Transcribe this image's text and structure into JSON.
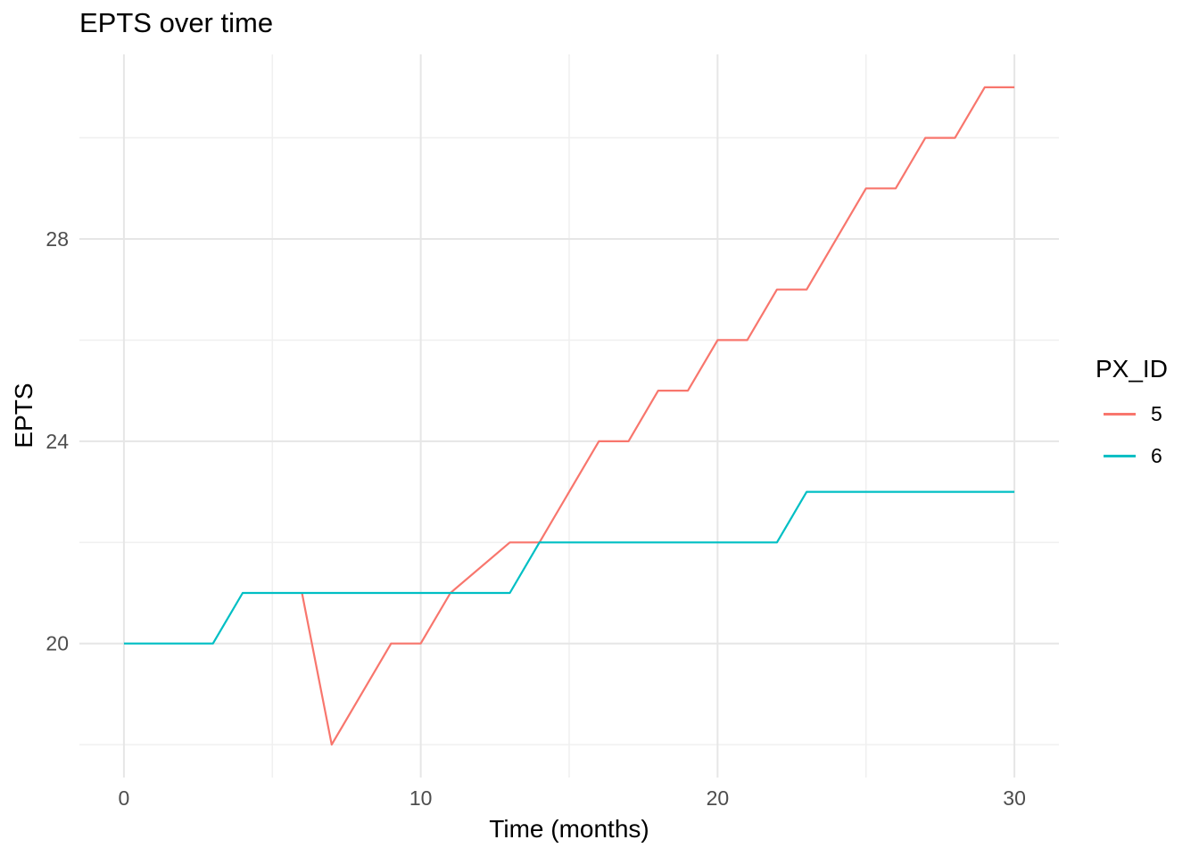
{
  "page": {
    "title": "EPTS over time",
    "x_axis_label": "Time (months)",
    "y_axis_label": "EPTS",
    "legend_title": "PX_ID"
  },
  "colors": {
    "background": "#FFFFFF",
    "series_5": "#F8766D",
    "series_6": "#00BFC4",
    "grid_major": "#E6E6E6",
    "grid_minor": "#F0F0F0",
    "tick_label": "#4D4D4D",
    "text": "#000000"
  },
  "chart_data": {
    "type": "line",
    "title": "EPTS over time",
    "xlabel": "Time (months)",
    "ylabel": "EPTS",
    "legend_title": "PX_ID",
    "legend_position": "right",
    "grid": true,
    "xlim": [
      -1.5,
      31.5
    ],
    "ylim": [
      17.35,
      31.65
    ],
    "x_ticks": [
      0,
      10,
      20,
      30
    ],
    "y_ticks": [
      20,
      24,
      28
    ],
    "x_minor_gridlines": [
      5,
      15,
      25
    ],
    "y_minor_gridlines": [
      18,
      22,
      26,
      30
    ],
    "series": [
      {
        "name": "5",
        "color": "#F8766D",
        "points": [
          [
            6,
            21
          ],
          [
            7,
            18
          ],
          [
            9,
            20
          ],
          [
            10,
            20
          ],
          [
            11,
            21
          ],
          [
            13,
            22
          ],
          [
            14,
            22
          ],
          [
            16,
            24
          ],
          [
            17,
            24
          ],
          [
            18,
            25
          ],
          [
            19,
            25
          ],
          [
            20,
            26
          ],
          [
            21,
            26
          ],
          [
            22,
            27
          ],
          [
            23,
            27
          ],
          [
            25,
            29
          ],
          [
            26,
            29
          ],
          [
            27,
            30
          ],
          [
            28,
            30
          ],
          [
            29,
            31
          ],
          [
            30,
            31
          ]
        ]
      },
      {
        "name": "6",
        "color": "#00BFC4",
        "points": [
          [
            0,
            20
          ],
          [
            3,
            20
          ],
          [
            4,
            21
          ],
          [
            13,
            21
          ],
          [
            14,
            22
          ],
          [
            22,
            22
          ],
          [
            23,
            23
          ],
          [
            30,
            23
          ]
        ]
      }
    ]
  }
}
